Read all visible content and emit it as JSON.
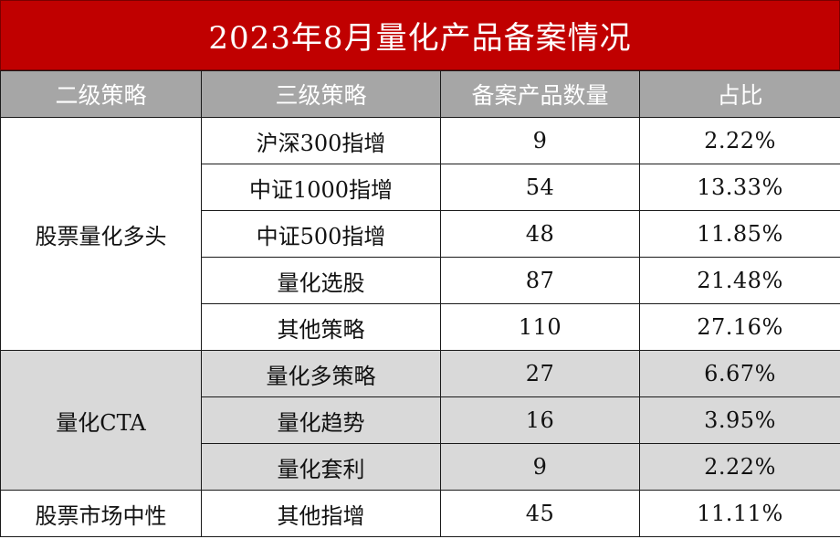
{
  "title": "2023年8月量化产品备案情况",
  "headers": [
    "二级策略",
    "三级策略",
    "备案产品数量",
    "占比"
  ],
  "groups": [
    {
      "name": "股票量化多头",
      "rows": [
        {
          "sub": "沪深300指增",
          "count": "9",
          "pct": "2.22%"
        },
        {
          "sub": "中证1000指增",
          "count": "54",
          "pct": "13.33%"
        },
        {
          "sub": "中证500指增",
          "count": "48",
          "pct": "11.85%"
        },
        {
          "sub": "量化选股",
          "count": "87",
          "pct": "21.48%"
        },
        {
          "sub": "其他策略",
          "count": "110",
          "pct": "27.16%"
        }
      ]
    },
    {
      "name": "量化CTA",
      "rows": [
        {
          "sub": "量化多策略",
          "count": "27",
          "pct": "6.67%"
        },
        {
          "sub": "量化趋势",
          "count": "16",
          "pct": "3.95%"
        },
        {
          "sub": "量化套利",
          "count": "9",
          "pct": "2.22%"
        }
      ]
    },
    {
      "name": "股票市场中性",
      "rows": [
        {
          "sub": "其他指增",
          "count": "45",
          "pct": "11.11%"
        }
      ]
    }
  ]
}
